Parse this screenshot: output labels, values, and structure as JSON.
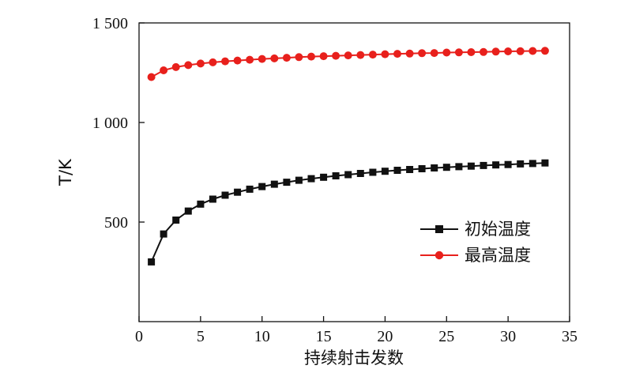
{
  "chart_data": {
    "type": "line",
    "xlabel": "持续射击发数",
    "ylabel": "T/K",
    "xlim": [
      0,
      35
    ],
    "ylim": [
      0,
      1500
    ],
    "xticks": [
      "0",
      "5",
      "10",
      "15",
      "20",
      "25",
      "30",
      "35"
    ],
    "yticks": [
      "500",
      "1 000",
      "1 500"
    ],
    "ytick_values": [
      500,
      1000,
      1500
    ],
    "grid": false,
    "legend_position": "lower-right",
    "x": [
      1,
      2,
      3,
      4,
      5,
      6,
      7,
      8,
      9,
      10,
      11,
      12,
      13,
      14,
      15,
      16,
      17,
      18,
      19,
      20,
      21,
      22,
      23,
      24,
      25,
      26,
      27,
      28,
      29,
      30,
      31,
      32,
      33
    ],
    "series": [
      {
        "name": "初始温度",
        "color": "#111111",
        "marker": "square",
        "values": [
          300,
          440,
          510,
          555,
          590,
          615,
          635,
          650,
          665,
          678,
          690,
          700,
          710,
          718,
          725,
          732,
          738,
          744,
          750,
          755,
          760,
          764,
          768,
          772,
          775,
          778,
          781,
          784,
          787,
          789,
          792,
          794,
          797
        ]
      },
      {
        "name": "最高温度",
        "color": "#e8201c",
        "marker": "circle",
        "values": [
          1228,
          1262,
          1278,
          1288,
          1296,
          1302,
          1307,
          1311,
          1315,
          1319,
          1322,
          1325,
          1328,
          1331,
          1333,
          1335,
          1337,
          1339,
          1341,
          1343,
          1345,
          1346,
          1348,
          1349,
          1351,
          1352,
          1353,
          1354,
          1356,
          1357,
          1358,
          1359,
          1360
        ]
      }
    ]
  }
}
